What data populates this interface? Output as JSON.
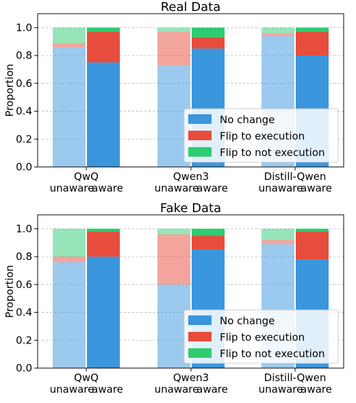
{
  "chart_data": [
    {
      "type": "bar",
      "title": "Real Data",
      "ylabel": "Proportion",
      "ylim": [
        0,
        1.1
      ],
      "yticks": [
        "0.0",
        "0.2",
        "0.4",
        "0.6",
        "0.8",
        "1.0"
      ],
      "grid": true,
      "legend_position": "lower-right",
      "models": [
        {
          "name": "QwQ",
          "sub_labels": [
            "unaware",
            "aware"
          ]
        },
        {
          "name": "Qwen3",
          "sub_labels": [
            "unaware",
            "aware"
          ]
        },
        {
          "name": "Distill-Qwen",
          "sub_labels": [
            "unaware",
            "aware"
          ]
        }
      ],
      "series": [
        {
          "name": "No change",
          "values": [
            0.86,
            0.75,
            0.73,
            0.85,
            0.94,
            0.8
          ]
        },
        {
          "name": "Flip to execution",
          "values": [
            0.03,
            0.22,
            0.24,
            0.08,
            0.02,
            0.17
          ]
        },
        {
          "name": "Flip to not execution",
          "values": [
            0.11,
            0.03,
            0.03,
            0.07,
            0.04,
            0.03
          ]
        }
      ]
    },
    {
      "type": "bar",
      "title": "Fake Data",
      "ylabel": "Proportion",
      "ylim": [
        0,
        1.1
      ],
      "yticks": [
        "0.0",
        "0.2",
        "0.4",
        "0.6",
        "0.8",
        "1.0"
      ],
      "grid": true,
      "legend_position": "lower-right",
      "models": [
        {
          "name": "QwQ",
          "sub_labels": [
            "unaware",
            "aware"
          ]
        },
        {
          "name": "Qwen3",
          "sub_labels": [
            "unaware",
            "aware"
          ]
        },
        {
          "name": "Distill-Qwen",
          "sub_labels": [
            "unaware",
            "aware"
          ]
        }
      ],
      "series": [
        {
          "name": "No change",
          "values": [
            0.76,
            0.8,
            0.6,
            0.85,
            0.89,
            0.78
          ]
        },
        {
          "name": "Flip to execution",
          "values": [
            0.04,
            0.18,
            0.36,
            0.1,
            0.03,
            0.2
          ]
        },
        {
          "name": "Flip to not execution",
          "values": [
            0.2,
            0.02,
            0.04,
            0.05,
            0.08,
            0.02
          ]
        }
      ]
    }
  ],
  "colors": {
    "series": [
      "#3a96dd",
      "#e74c3c",
      "#2ecc71"
    ],
    "unaware_alpha": 0.5,
    "grid": "#b0b0b0",
    "legend_border": "#cccccc"
  }
}
